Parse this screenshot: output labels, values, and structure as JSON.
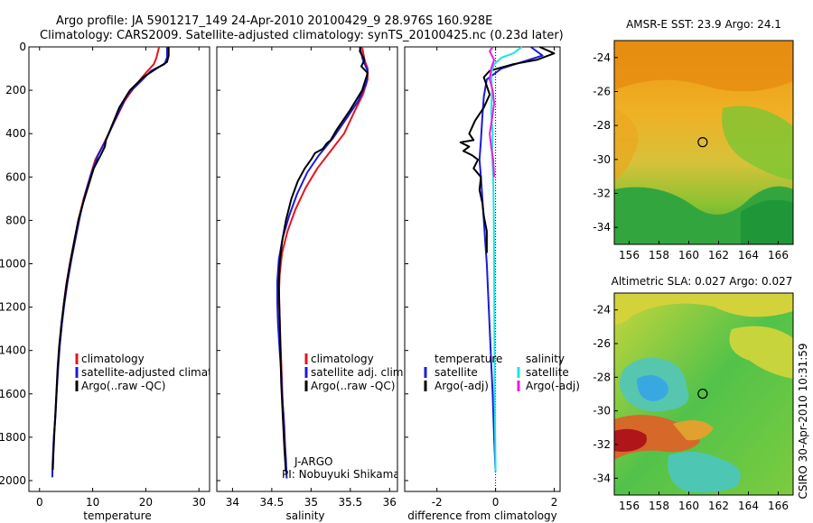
{
  "header": {
    "title_line1": "Argo profile: JA 5901217_149 24-Apr-2010 20100429_9 28.976S 160.928E",
    "title_line2": "Climatology: CARS2009. Satellite-adjusted climatology: synTS_20100425.nc (0.23d later)"
  },
  "side_label": "CSIRO 30-Apr-2010 10:31:59",
  "colors": {
    "red": "#e8141c",
    "blue": "#1a1adc",
    "black": "#000000",
    "cyan": "#1ee4e4",
    "magenta": "#e61ee6"
  },
  "chart_data": [
    {
      "type": "line",
      "xlabel": "temperature",
      "xlim": [
        -2,
        32
      ],
      "ylim": [
        0,
        2050
      ],
      "xticks": [
        "0",
        "10",
        "20",
        "30"
      ],
      "yticks": [
        "0",
        "200",
        "400",
        "600",
        "800",
        "1000",
        "1200",
        "1400",
        "1600",
        "1800",
        "2000"
      ],
      "legend": [
        "climatology",
        "satellite-adjusted climatology",
        "Argo(..raw -QC)"
      ],
      "series": [
        {
          "name": "climatology",
          "color": "#e8141c",
          "points": [
            [
              22.5,
              0
            ],
            [
              22,
              50
            ],
            [
              21.5,
              80
            ],
            [
              20,
              120
            ],
            [
              18,
              180
            ],
            [
              16,
              250
            ],
            [
              14,
              350
            ],
            [
              12,
              450
            ],
            [
              10.5,
              520
            ],
            [
              9.5,
              600
            ],
            [
              8.3,
              700
            ],
            [
              7.3,
              800
            ],
            [
              6.5,
              900
            ],
            [
              5.7,
              1000
            ],
            [
              5,
              1100
            ],
            [
              4.5,
              1200
            ],
            [
              4.1,
              1300
            ],
            [
              3.7,
              1400
            ],
            [
              3.4,
              1500
            ],
            [
              3.2,
              1600
            ],
            [
              3,
              1700
            ],
            [
              2.7,
              1800
            ],
            [
              2.5,
              1900
            ],
            [
              2.4,
              1960
            ]
          ]
        },
        {
          "name": "satellite-adjusted climatology",
          "color": "#1a1adc",
          "points": [
            [
              24,
              0
            ],
            [
              24,
              50
            ],
            [
              23.5,
              80
            ],
            [
              21,
              110
            ],
            [
              19,
              160
            ],
            [
              16.5,
              220
            ],
            [
              14.5,
              320
            ],
            [
              12.5,
              430
            ],
            [
              11,
              500
            ],
            [
              9.8,
              580
            ],
            [
              8.7,
              670
            ],
            [
              7.7,
              770
            ],
            [
              6.8,
              880
            ],
            [
              6,
              980
            ],
            [
              5.3,
              1080
            ],
            [
              4.7,
              1180
            ],
            [
              4.2,
              1280
            ],
            [
              3.8,
              1380
            ],
            [
              3.5,
              1480
            ],
            [
              3.2,
              1600
            ],
            [
              3,
              1700
            ],
            [
              2.7,
              1800
            ],
            [
              2.5,
              1900
            ],
            [
              2.4,
              1985
            ]
          ]
        },
        {
          "name": "Argo(..raw -QC)",
          "color": "#000000",
          "points": [
            [
              24.3,
              0
            ],
            [
              24.3,
              40
            ],
            [
              24,
              70
            ],
            [
              22,
              100
            ],
            [
              19.5,
              140
            ],
            [
              17,
              200
            ],
            [
              15,
              280
            ],
            [
              13.5,
              370
            ],
            [
              12.5,
              430
            ],
            [
              12.3,
              460
            ],
            [
              11.5,
              500
            ],
            [
              10.2,
              560
            ],
            [
              9.2,
              640
            ],
            [
              8.2,
              720
            ],
            [
              7.3,
              800
            ],
            [
              6.5,
              900
            ],
            [
              5.8,
              990
            ],
            [
              5.1,
              1090
            ],
            [
              4.6,
              1180
            ],
            [
              4.1,
              1280
            ],
            [
              3.7,
              1380
            ],
            [
              3.4,
              1480
            ],
            [
              3.2,
              1580
            ],
            [
              3,
              1680
            ],
            [
              2.8,
              1780
            ],
            [
              2.6,
              1880
            ],
            [
              2.5,
              1950
            ]
          ]
        }
      ]
    },
    {
      "type": "line",
      "xlabel": "salinity",
      "xlim": [
        33.8,
        36.1
      ],
      "ylim": [
        0,
        2050
      ],
      "xticks": [
        "34",
        "34.5",
        "35",
        "35.5",
        "36"
      ],
      "yticks": [],
      "legend": [
        "climatology",
        "satellite adj. clim.",
        "Argo(..raw -QC)"
      ],
      "annotation_line1": "J-ARGO",
      "annotation_line2": "PI: Nobuyuki Shikama",
      "series": [
        {
          "name": "climatology",
          "color": "#e8141c",
          "points": [
            [
              35.65,
              0
            ],
            [
              35.68,
              60
            ],
            [
              35.72,
              100
            ],
            [
              35.72,
              150
            ],
            [
              35.66,
              220
            ],
            [
              35.55,
              300
            ],
            [
              35.42,
              400
            ],
            [
              35.25,
              480
            ],
            [
              35.08,
              560
            ],
            [
              34.93,
              650
            ],
            [
              34.8,
              750
            ],
            [
              34.7,
              850
            ],
            [
              34.63,
              950
            ],
            [
              34.6,
              1050
            ],
            [
              34.59,
              1150
            ],
            [
              34.6,
              1250
            ],
            [
              34.61,
              1350
            ],
            [
              34.62,
              1450
            ],
            [
              34.63,
              1550
            ],
            [
              34.64,
              1650
            ],
            [
              34.66,
              1750
            ],
            [
              34.67,
              1850
            ],
            [
              34.68,
              1950
            ]
          ]
        },
        {
          "name": "satellite adj. clim.",
          "color": "#1a1adc",
          "points": [
            [
              35.62,
              0
            ],
            [
              35.66,
              60
            ],
            [
              35.72,
              110
            ],
            [
              35.7,
              170
            ],
            [
              35.6,
              250
            ],
            [
              35.45,
              330
            ],
            [
              35.28,
              420
            ],
            [
              35.1,
              500
            ],
            [
              34.95,
              580
            ],
            [
              34.82,
              680
            ],
            [
              34.72,
              780
            ],
            [
              34.64,
              880
            ],
            [
              34.59,
              980
            ],
            [
              34.57,
              1080
            ],
            [
              34.57,
              1180
            ],
            [
              34.58,
              1280
            ],
            [
              34.6,
              1400
            ],
            [
              34.62,
              1500
            ],
            [
              34.63,
              1600
            ],
            [
              34.65,
              1700
            ],
            [
              34.66,
              1800
            ],
            [
              34.68,
              1900
            ],
            [
              34.69,
              1990
            ]
          ]
        },
        {
          "name": "Argo(..raw -QC)",
          "color": "#000000",
          "points": [
            [
              35.63,
              0
            ],
            [
              35.62,
              20
            ],
            [
              35.68,
              60
            ],
            [
              35.64,
              90
            ],
            [
              35.72,
              120
            ],
            [
              35.65,
              200
            ],
            [
              35.5,
              290
            ],
            [
              35.33,
              380
            ],
            [
              35.25,
              430
            ],
            [
              35.2,
              445
            ],
            [
              35.15,
              470
            ],
            [
              35.05,
              490
            ],
            [
              35,
              520
            ],
            [
              34.92,
              560
            ],
            [
              34.83,
              620
            ],
            [
              34.75,
              700
            ],
            [
              34.68,
              800
            ],
            [
              34.63,
              900
            ],
            [
              34.6,
              1000
            ],
            [
              34.59,
              1100
            ],
            [
              34.6,
              1250
            ],
            [
              34.61,
              1400
            ],
            [
              34.62,
              1550
            ],
            [
              34.64,
              1700
            ],
            [
              34.66,
              1850
            ],
            [
              34.68,
              1960
            ]
          ]
        }
      ]
    },
    {
      "type": "line",
      "xlabel": "difference from climatology",
      "xlim": [
        -3.1,
        2.2
      ],
      "ylim": [
        0,
        2050
      ],
      "xticks": [
        "-2",
        "0",
        "2"
      ],
      "yticks": [],
      "zero_line": true,
      "legend_headers": [
        "temperature",
        "salinity"
      ],
      "legend": [
        "satellite",
        "Argo(-adj)",
        "satellite",
        "Argo(-adj)"
      ],
      "series": [
        {
          "name": "temperature satellite",
          "color": "#1a1adc",
          "points": [
            [
              1.2,
              0
            ],
            [
              1.6,
              40
            ],
            [
              0.9,
              70
            ],
            [
              0.2,
              100
            ],
            [
              -0.3,
              150
            ],
            [
              -0.4,
              230
            ],
            [
              -0.45,
              320
            ],
            [
              -0.5,
              430
            ],
            [
              -0.55,
              520
            ],
            [
              -0.5,
              600
            ],
            [
              -0.45,
              700
            ],
            [
              -0.4,
              800
            ],
            [
              -0.35,
              900
            ],
            [
              -0.3,
              1000
            ],
            [
              -0.25,
              1150
            ],
            [
              -0.2,
              1300
            ],
            [
              -0.15,
              1450
            ],
            [
              -0.1,
              1600
            ],
            [
              -0.05,
              1800
            ],
            [
              0,
              1960
            ]
          ]
        },
        {
          "name": "temperature Argo(-adj)",
          "color": "#000000",
          "points": [
            [
              1.5,
              0
            ],
            [
              2,
              30
            ],
            [
              1.4,
              60
            ],
            [
              0.6,
              80
            ],
            [
              -0.2,
              110
            ],
            [
              -0.4,
              140
            ],
            [
              -0.3,
              180
            ],
            [
              -0.2,
              220
            ],
            [
              -0.4,
              280
            ],
            [
              -0.7,
              340
            ],
            [
              -0.9,
              400
            ],
            [
              -0.75,
              430
            ],
            [
              -1.2,
              440
            ],
            [
              -0.9,
              460
            ],
            [
              -1.1,
              480
            ],
            [
              -0.8,
              500
            ],
            [
              -0.6,
              520
            ],
            [
              -0.75,
              560
            ],
            [
              -0.5,
              600
            ],
            [
              -0.55,
              660
            ],
            [
              -0.45,
              720
            ],
            [
              -0.4,
              780
            ],
            [
              -0.3,
              850
            ],
            [
              -0.3,
              950
            ]
          ]
        },
        {
          "name": "salinity satellite",
          "color": "#1ee4e4",
          "points": [
            [
              0.9,
              0
            ],
            [
              0.6,
              30
            ],
            [
              0.2,
              50
            ],
            [
              -0.05,
              80
            ],
            [
              -0.15,
              120
            ],
            [
              -0.12,
              200
            ],
            [
              -0.15,
              300
            ],
            [
              -0.1,
              400
            ],
            [
              -0.12,
              500
            ],
            [
              -0.08,
              600
            ],
            [
              -0.06,
              800
            ],
            [
              -0.05,
              1000
            ],
            [
              -0.04,
              1300
            ],
            [
              -0.03,
              1600
            ],
            [
              0,
              1960
            ]
          ]
        },
        {
          "name": "salinity Argo(-adj)",
          "color": "#e61ee6",
          "points": [
            [
              -0.1,
              0
            ],
            [
              -0.2,
              20
            ],
            [
              -0.05,
              60
            ],
            [
              -0.15,
              100
            ],
            [
              -0.2,
              150
            ],
            [
              -0.1,
              200
            ],
            [
              -0.05,
              260
            ],
            [
              -0.12,
              330
            ],
            [
              -0.2,
              400
            ],
            [
              -0.15,
              460
            ],
            [
              -0.08,
              520
            ],
            [
              -0.05,
              600
            ]
          ]
        }
      ]
    },
    {
      "type": "heatmap",
      "title": "AMSR-E SST: 23.9 Argo: 24.1",
      "xlim": [
        155,
        167
      ],
      "ylim": [
        -35,
        -23
      ],
      "xticks": [
        "156",
        "158",
        "160",
        "162",
        "164",
        "166"
      ],
      "yticks": [
        "-24",
        "-26",
        "-28",
        "-30",
        "-32",
        "-34"
      ],
      "marker": {
        "x": 160.93,
        "y": -28.98
      }
    },
    {
      "type": "heatmap",
      "title": "Altimetric SLA: 0.027 Argo: 0.027",
      "xlim": [
        155,
        167
      ],
      "ylim": [
        -35,
        -23
      ],
      "xticks": [
        "156",
        "158",
        "160",
        "162",
        "164",
        "166"
      ],
      "yticks": [
        "-24",
        "-26",
        "-28",
        "-30",
        "-32",
        "-34"
      ],
      "marker": {
        "x": 160.93,
        "y": -28.98
      }
    }
  ]
}
